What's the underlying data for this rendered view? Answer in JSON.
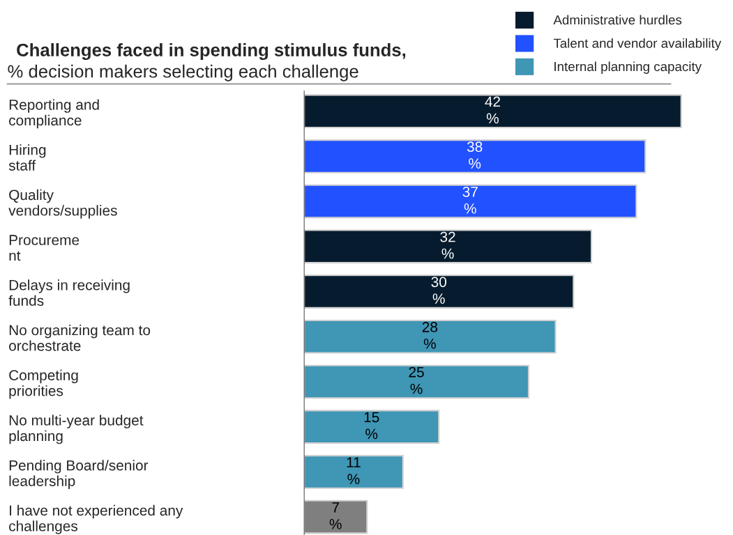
{
  "chart_data": {
    "type": "bar",
    "orientation": "horizontal",
    "title": "Challenges faced in spending stimulus funds,",
    "subtitle": "% decision makers selecting each challenge",
    "categories": [
      "Reporting and\ncompliance",
      "Hiring\nstaff",
      "Quality\nvendors/supplies",
      "Procureme\nnt",
      "Delays in receiving\nfunds",
      "No organizing team to\norchestrate",
      "Competing\npriorities",
      "No multi-year budget\nplanning",
      "Pending Board/senior\nleadership",
      "I have not experienced any\nchallenges"
    ],
    "series": [
      {
        "name": "Administrative hurdles",
        "color": "#061c2e",
        "values": [
          42,
          null,
          null,
          32,
          30,
          null,
          null,
          null,
          null,
          null
        ],
        "value_labels": [
          "42\n%",
          null,
          null,
          "32\n%",
          "30\n%",
          null,
          null,
          null,
          null,
          null
        ]
      },
      {
        "name": "Talent and vendor availability",
        "color": "#2251ff",
        "values": [
          null,
          38,
          37,
          null,
          null,
          null,
          null,
          null,
          null,
          null
        ],
        "value_labels": [
          null,
          "38\n%",
          "37\n%",
          null,
          null,
          null,
          null,
          null,
          null,
          null
        ]
      },
      {
        "name": "Internal planning capacity",
        "color": "#3f96b5",
        "values": [
          null,
          null,
          null,
          null,
          null,
          28,
          25,
          15,
          11,
          null
        ],
        "value_labels": [
          null,
          null,
          null,
          null,
          null,
          "28\n%",
          "25\n%",
          "15\n%",
          "11\n%",
          null
        ]
      },
      {
        "color": "#7f7f7f",
        "values": [
          null,
          null,
          null,
          null,
          null,
          null,
          null,
          null,
          null,
          7
        ],
        "value_labels": [
          null,
          null,
          null,
          null,
          null,
          null,
          null,
          null,
          null,
          "7\n%"
        ]
      }
    ],
    "legend": "top right",
    "grid": false,
    "tick_labels": "y"
  }
}
